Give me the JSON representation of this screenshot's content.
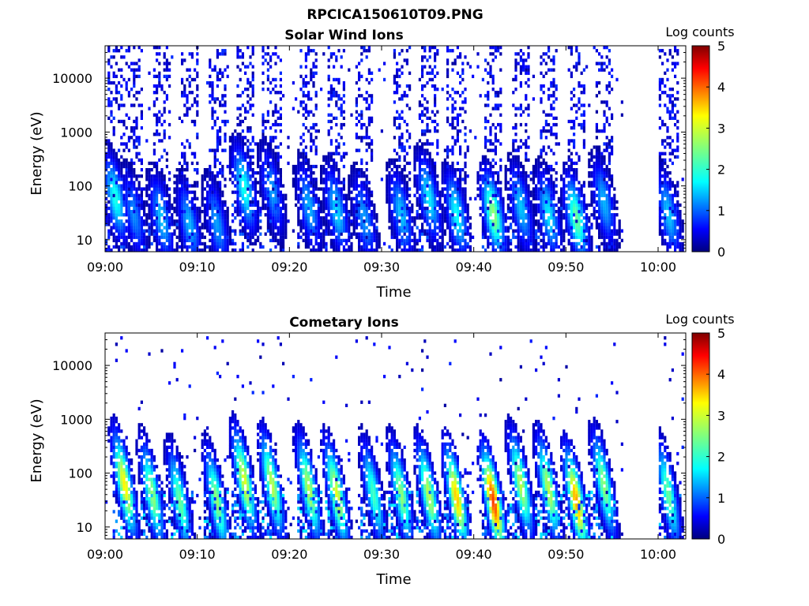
{
  "figure": {
    "file_title": "RPCICA150610T09.PNG"
  },
  "chart_data": [
    {
      "type": "heatmap",
      "title": "Solar Wind Ions",
      "xlabel": "Time",
      "ylabel": "Energy (eV)",
      "x_ticks": [
        "09:00",
        "09:10",
        "09:20",
        "09:30",
        "09:40",
        "09:50",
        "10:00"
      ],
      "x_range": [
        "09:00",
        "10:03"
      ],
      "y_scale": "log",
      "y_ticks": [
        10,
        100,
        1000,
        10000
      ],
      "y_range": [
        6,
        40000
      ],
      "colorbar": {
        "label": "Log counts",
        "range": [
          0,
          5
        ],
        "ticks": [
          0,
          1,
          2,
          3,
          4,
          5
        ],
        "colormap": "jet"
      },
      "data_gap": [
        "09:56",
        "10:00"
      ],
      "bursts": [
        {
          "time": "09:01",
          "peak_energy": 60,
          "peak_log_counts": 2.0
        },
        {
          "time": "09:03",
          "peak_energy": 30,
          "peak_log_counts": 1.3
        },
        {
          "time": "09:06",
          "peak_energy": 25,
          "peak_log_counts": 1.6
        },
        {
          "time": "09:09",
          "peak_energy": 20,
          "peak_log_counts": 1.5
        },
        {
          "time": "09:12",
          "peak_energy": 20,
          "peak_log_counts": 1.4
        },
        {
          "time": "09:15",
          "peak_energy": 90,
          "peak_log_counts": 2.0
        },
        {
          "time": "09:18",
          "peak_energy": 80,
          "peak_log_counts": 1.4
        },
        {
          "time": "09:22",
          "peak_energy": 40,
          "peak_log_counts": 1.5
        },
        {
          "time": "09:25",
          "peak_energy": 35,
          "peak_log_counts": 1.7
        },
        {
          "time": "09:28",
          "peak_energy": 25,
          "peak_log_counts": 1.4
        },
        {
          "time": "09:32",
          "peak_energy": 30,
          "peak_log_counts": 1.6
        },
        {
          "time": "09:35",
          "peak_energy": 60,
          "peak_log_counts": 1.8
        },
        {
          "time": "09:38",
          "peak_energy": 30,
          "peak_log_counts": 1.9
        },
        {
          "time": "09:42",
          "peak_energy": 30,
          "peak_log_counts": 2.6
        },
        {
          "time": "09:45",
          "peak_energy": 40,
          "peak_log_counts": 1.6
        },
        {
          "time": "09:48",
          "peak_energy": 30,
          "peak_log_counts": 1.8
        },
        {
          "time": "09:51",
          "peak_energy": 25,
          "peak_log_counts": 2.4
        },
        {
          "time": "09:54",
          "peak_energy": 50,
          "peak_log_counts": 1.5
        },
        {
          "time": "10:01",
          "peak_energy": 30,
          "peak_log_counts": 1.6
        }
      ]
    },
    {
      "type": "heatmap",
      "title": "Cometary Ions",
      "xlabel": "Time",
      "ylabel": "Energy (eV)",
      "x_ticks": [
        "09:00",
        "09:10",
        "09:20",
        "09:30",
        "09:40",
        "09:50",
        "10:00"
      ],
      "x_range": [
        "09:00",
        "10:03"
      ],
      "y_scale": "log",
      "y_ticks": [
        10,
        100,
        1000,
        10000
      ],
      "y_range": [
        6,
        40000
      ],
      "colorbar": {
        "label": "Log counts",
        "range": [
          0,
          5
        ],
        "ticks": [
          0,
          1,
          2,
          3,
          4,
          5
        ],
        "colormap": "jet"
      },
      "data_gap": [
        "09:56",
        "10:00"
      ],
      "bursts": [
        {
          "time": "09:02",
          "peak_energy": 60,
          "peak_log_counts": 3.2
        },
        {
          "time": "09:05",
          "peak_energy": 40,
          "peak_log_counts": 2.6
        },
        {
          "time": "09:08",
          "peak_energy": 30,
          "peak_log_counts": 2.4
        },
        {
          "time": "09:12",
          "peak_energy": 30,
          "peak_log_counts": 2.6
        },
        {
          "time": "09:15",
          "peak_energy": 70,
          "peak_log_counts": 3.0
        },
        {
          "time": "09:18",
          "peak_energy": 60,
          "peak_log_counts": 2.8
        },
        {
          "time": "09:22",
          "peak_energy": 50,
          "peak_log_counts": 2.8
        },
        {
          "time": "09:25",
          "peak_energy": 40,
          "peak_log_counts": 3.0
        },
        {
          "time": "09:29",
          "peak_energy": 40,
          "peak_log_counts": 2.2
        },
        {
          "time": "09:32",
          "peak_energy": 40,
          "peak_log_counts": 2.6
        },
        {
          "time": "09:35",
          "peak_energy": 40,
          "peak_log_counts": 2.8
        },
        {
          "time": "09:38",
          "peak_energy": 35,
          "peak_log_counts": 3.4
        },
        {
          "time": "09:42",
          "peak_energy": 30,
          "peak_log_counts": 4.1
        },
        {
          "time": "09:45",
          "peak_energy": 60,
          "peak_log_counts": 2.8
        },
        {
          "time": "09:48",
          "peak_energy": 50,
          "peak_log_counts": 2.8
        },
        {
          "time": "09:51",
          "peak_energy": 30,
          "peak_log_counts": 3.6
        },
        {
          "time": "09:54",
          "peak_energy": 60,
          "peak_log_counts": 2.6
        },
        {
          "time": "10:01",
          "peak_energy": 40,
          "peak_log_counts": 2.4
        }
      ]
    }
  ]
}
